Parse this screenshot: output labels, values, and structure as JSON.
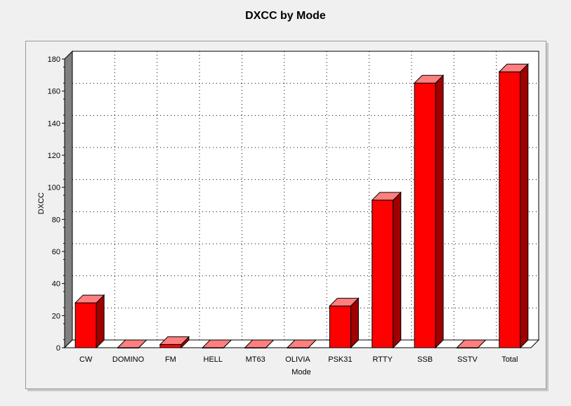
{
  "chart_data": {
    "type": "bar",
    "title": "DXCC by Mode",
    "xlabel": "Mode",
    "ylabel": "DXCC",
    "categories": [
      "CW",
      "DOMINO",
      "FM",
      "HELL",
      "MT63",
      "OLIVIA",
      "PSK31",
      "RTTY",
      "SSB",
      "SSTV",
      "Total"
    ],
    "values": [
      28,
      0,
      2,
      0,
      0,
      0,
      26,
      92,
      165,
      0,
      172
    ],
    "ylim": [
      0,
      180
    ],
    "yticks": [
      0,
      20,
      40,
      60,
      80,
      100,
      120,
      140,
      160,
      180
    ],
    "grid": true,
    "legend": "none",
    "colors": {
      "bar_front": "#ff0000",
      "bar_top": "#ff7f7f",
      "bar_side": "#a00000",
      "bar_outline": "#000000",
      "wall": "#ffffff",
      "wall_edge": "#808080",
      "grid": "#000000"
    }
  }
}
